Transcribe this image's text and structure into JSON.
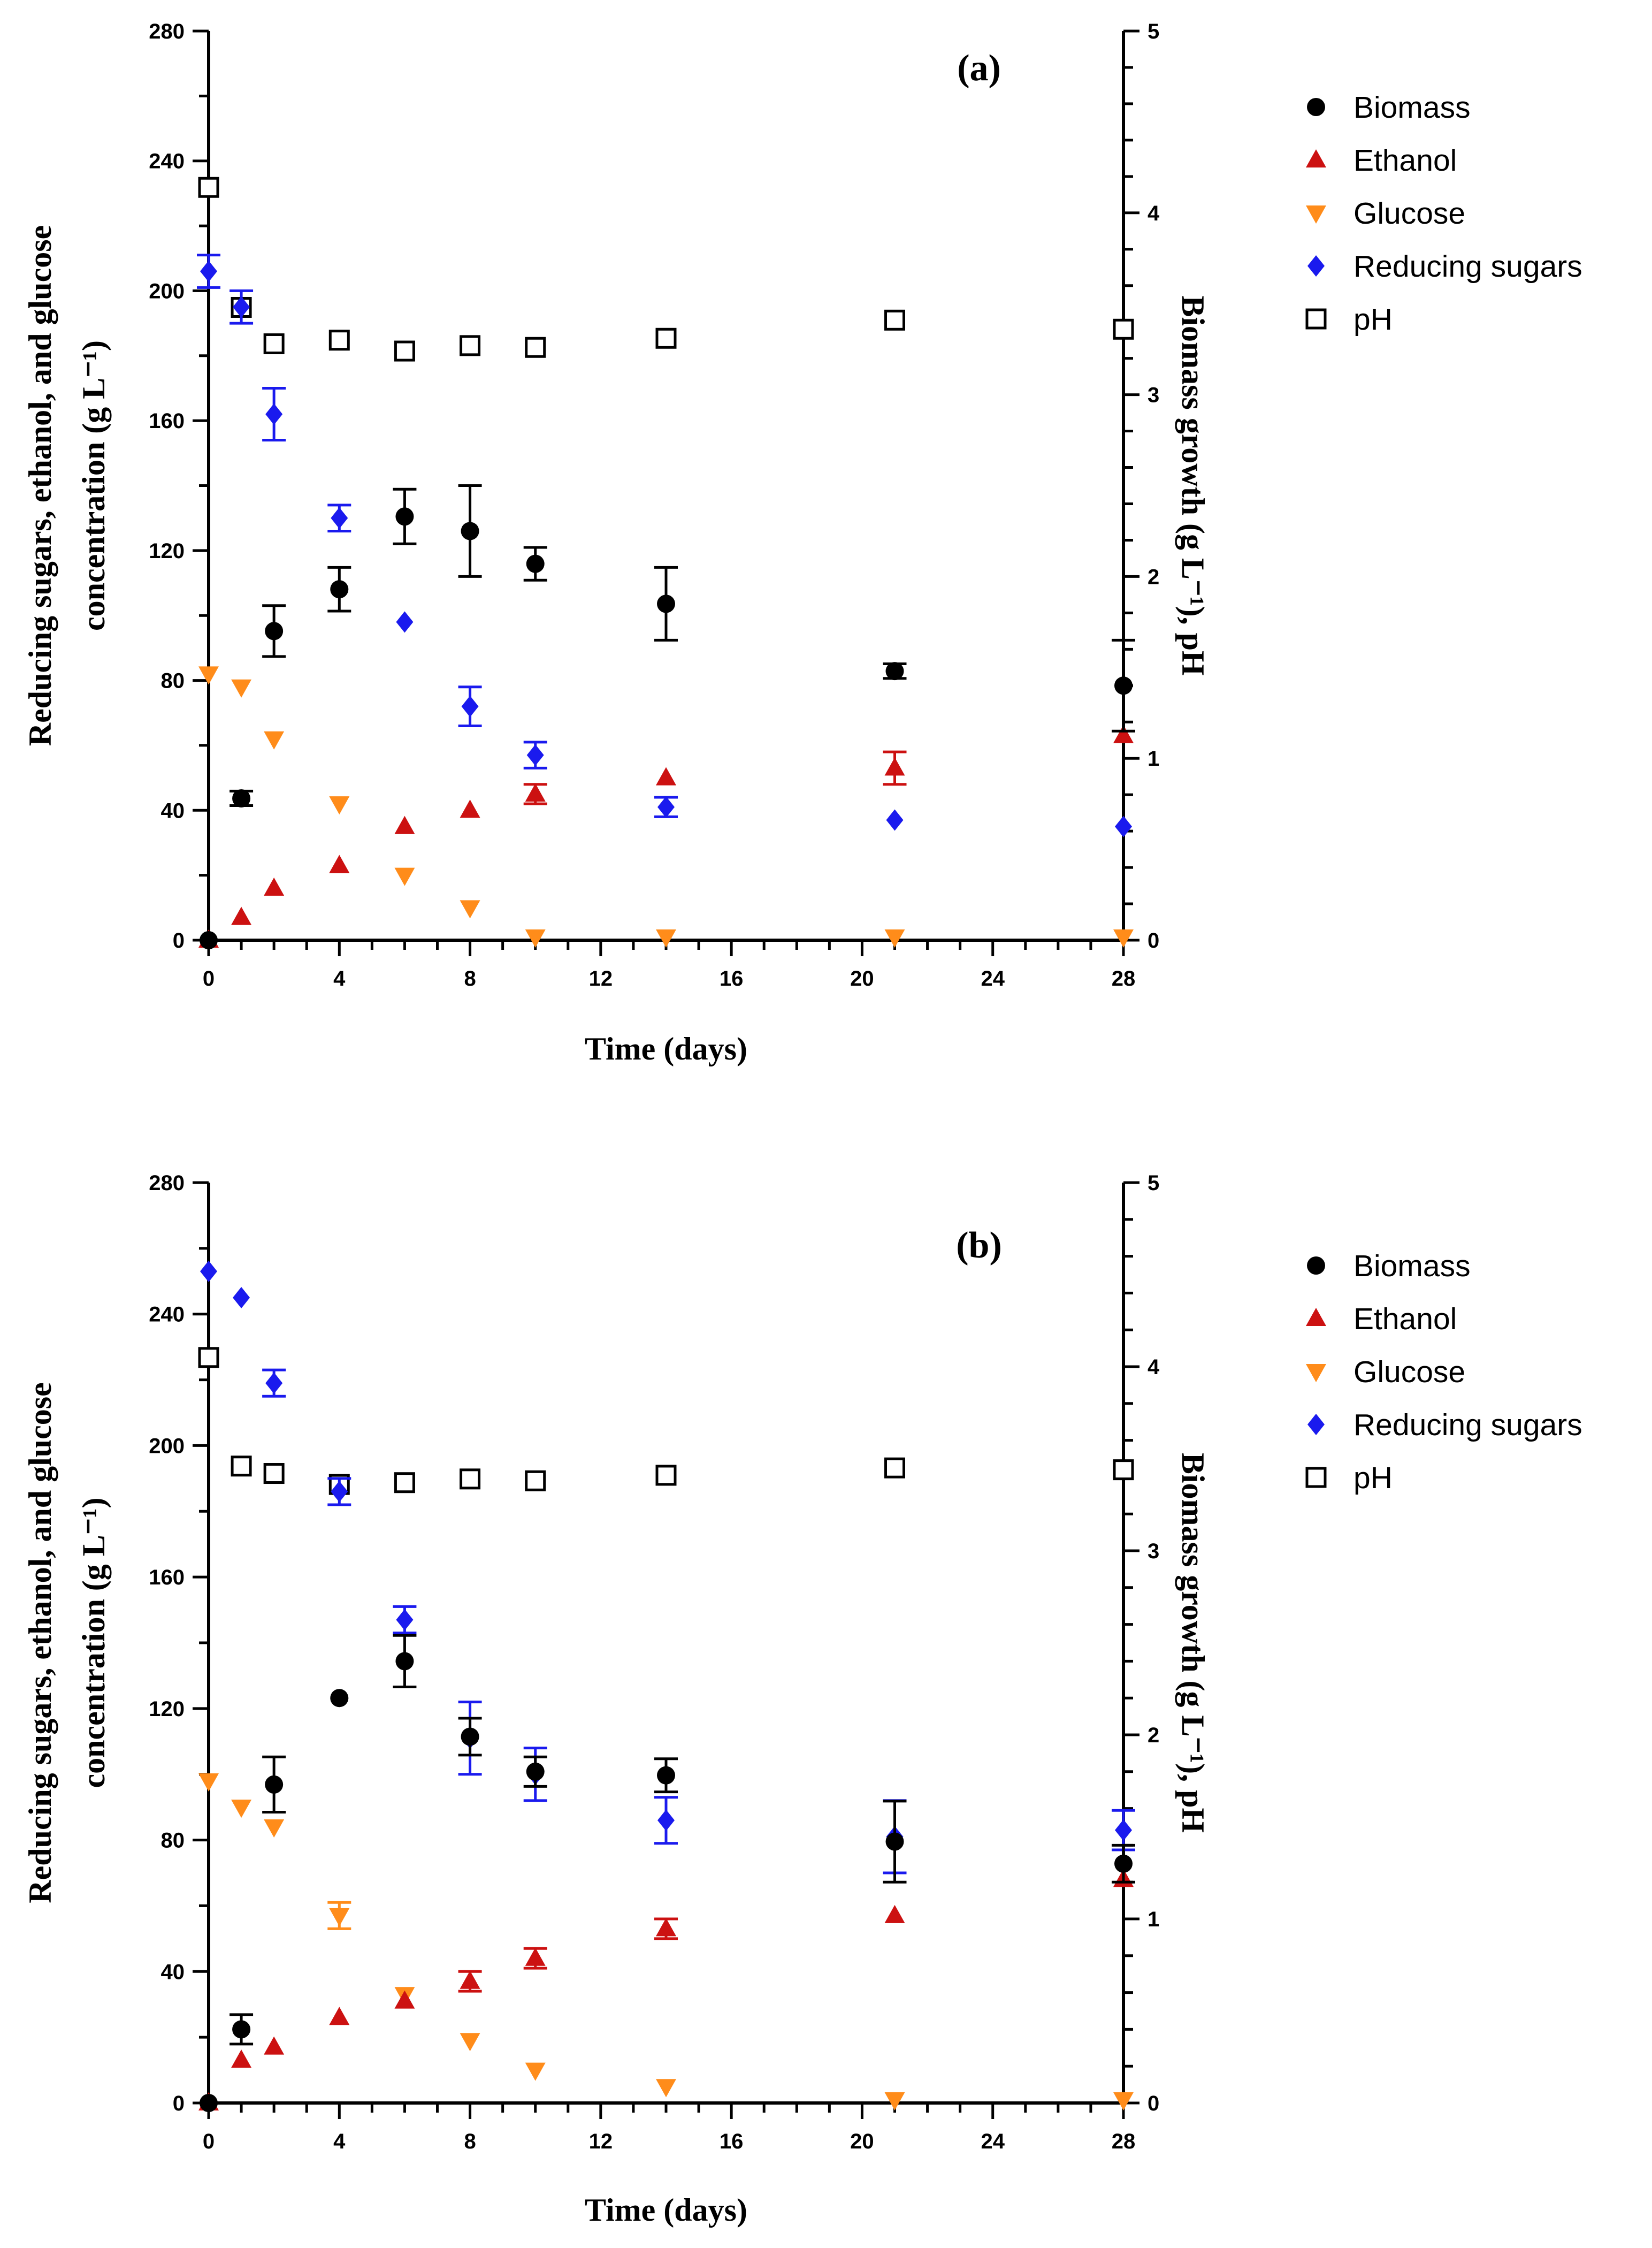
{
  "colors": {
    "biomass": "#000000",
    "ethanol": "#cc1111",
    "glucose": "#ff8c1a",
    "reducing": "#1a1aee",
    "ph": "#000000"
  },
  "chart_data": [
    {
      "type": "scatter",
      "panel_label": "(a)",
      "xlabel": "Time (days)",
      "ylabel_left_line1": "Reducing sugars, ethanol, and glucose",
      "ylabel_left_line2": "concentration (g L⁻¹)",
      "ylabel_right": "Biomass growth (g L⁻¹), pH",
      "xlim": [
        0,
        28
      ],
      "x_ticks": [
        "0",
        "4",
        "8",
        "12",
        "16",
        "20",
        "24",
        "28"
      ],
      "ylim_left": [
        0,
        280
      ],
      "y_ticks_left": [
        "0",
        "40",
        "80",
        "120",
        "160",
        "200",
        "240",
        "280"
      ],
      "ylim_right": [
        0,
        5
      ],
      "y_ticks_right": [
        "0",
        "1",
        "2",
        "3",
        "4",
        "5"
      ],
      "legend": [
        "Biomass",
        "Ethanol",
        "Glucose",
        "Reducing sugars",
        "pH"
      ],
      "series": [
        {
          "name": "Biomass",
          "axis": "right",
          "marker": "circle",
          "color_key": "biomass",
          "x": [
            0,
            1,
            2,
            4,
            6,
            8,
            10,
            14,
            21,
            28
          ],
          "y": [
            0,
            0.78,
            1.7,
            1.93,
            2.33,
            2.25,
            2.07,
            1.85,
            1.48,
            1.4
          ],
          "err": [
            0,
            0.04,
            0.14,
            0.12,
            0.15,
            0.25,
            0.09,
            0.2,
            0.04,
            0.25
          ]
        },
        {
          "name": "Ethanol",
          "axis": "left",
          "marker": "triangle-up",
          "color_key": "ethanol",
          "x": [
            0,
            1,
            2,
            4,
            6,
            8,
            10,
            14,
            21,
            28
          ],
          "y": [
            0,
            7,
            16,
            23,
            35,
            40,
            45,
            50,
            53,
            63
          ],
          "err": [
            0,
            0,
            0,
            0,
            0,
            0,
            3,
            0,
            5,
            0
          ]
        },
        {
          "name": "Glucose",
          "axis": "left",
          "marker": "triangle-down",
          "color_key": "glucose",
          "x": [
            0,
            1,
            2,
            4,
            6,
            8,
            10,
            14,
            21,
            28
          ],
          "y": [
            82,
            78,
            62,
            42,
            20,
            10,
            1,
            1,
            1,
            1
          ],
          "err": [
            0,
            0,
            0,
            0,
            0,
            0,
            0,
            0,
            0,
            0
          ]
        },
        {
          "name": "Reducing sugars",
          "axis": "left",
          "marker": "diamond",
          "color_key": "reducing",
          "x": [
            0,
            1,
            2,
            4,
            6,
            8,
            10,
            14,
            21,
            28
          ],
          "y": [
            206,
            195,
            162,
            130,
            98,
            72,
            57,
            41,
            37,
            35
          ],
          "err": [
            5,
            5,
            8,
            4,
            0,
            6,
            4,
            3,
            0,
            0
          ]
        },
        {
          "name": "pH",
          "axis": "right",
          "marker": "square-open",
          "color_key": "ph",
          "x": [
            0,
            1,
            2,
            4,
            6,
            8,
            10,
            14,
            21,
            28
          ],
          "y": [
            4.14,
            3.48,
            3.28,
            3.3,
            3.24,
            3.27,
            3.26,
            3.31,
            3.41,
            3.36
          ],
          "err": [
            0,
            0,
            0,
            0,
            0,
            0,
            0,
            0,
            0,
            0
          ]
        }
      ]
    },
    {
      "type": "scatter",
      "panel_label": "(b)",
      "xlabel": "Time (days)",
      "ylabel_left_line1": "Reducing sugars, ethanol, and glucose",
      "ylabel_left_line2": "concentration (g L⁻¹)",
      "ylabel_right": "Biomass growth (g L⁻¹), pH",
      "xlim": [
        0,
        28
      ],
      "x_ticks": [
        "0",
        "4",
        "8",
        "12",
        "16",
        "20",
        "24",
        "28"
      ],
      "ylim_left": [
        0,
        280
      ],
      "y_ticks_left": [
        "0",
        "40",
        "80",
        "120",
        "160",
        "200",
        "240",
        "280"
      ],
      "ylim_right": [
        0,
        5
      ],
      "y_ticks_right": [
        "0",
        "1",
        "2",
        "3",
        "4",
        "5"
      ],
      "legend": [
        "Biomass",
        "Ethanol",
        "Glucose",
        "Reducing sugars",
        "pH"
      ],
      "series": [
        {
          "name": "Biomass",
          "axis": "right",
          "marker": "circle",
          "color_key": "biomass",
          "x": [
            0,
            1,
            2,
            4,
            6,
            8,
            10,
            14,
            21,
            28
          ],
          "y": [
            0,
            0.4,
            1.73,
            2.2,
            2.4,
            1.99,
            1.8,
            1.78,
            1.42,
            1.3
          ],
          "err": [
            0,
            0.08,
            0.15,
            0,
            0.14,
            0.1,
            0.08,
            0.09,
            0.22,
            0.1
          ]
        },
        {
          "name": "Ethanol",
          "axis": "left",
          "marker": "triangle-up",
          "color_key": "ethanol",
          "x": [
            0,
            1,
            2,
            4,
            6,
            8,
            10,
            14,
            21,
            28
          ],
          "y": [
            0,
            13,
            17,
            26,
            31,
            37,
            44,
            53,
            57,
            68
          ],
          "err": [
            0,
            0,
            0,
            0,
            0,
            3,
            3,
            3,
            0,
            0
          ]
        },
        {
          "name": "Glucose",
          "axis": "left",
          "marker": "triangle-down",
          "color_key": "glucose",
          "x": [
            0,
            1,
            2,
            4,
            6,
            8,
            10,
            14,
            21,
            28
          ],
          "y": [
            98,
            90,
            84,
            57,
            33,
            19,
            10,
            5,
            1,
            1
          ],
          "err": [
            0,
            0,
            0,
            4,
            0,
            0,
            0,
            0,
            0,
            0
          ]
        },
        {
          "name": "Reducing sugars",
          "axis": "left",
          "marker": "diamond",
          "color_key": "reducing",
          "x": [
            0,
            1,
            2,
            4,
            6,
            8,
            10,
            14,
            21,
            28
          ],
          "y": [
            253,
            245,
            219,
            186,
            147,
            111,
            100,
            86,
            81,
            83
          ],
          "err": [
            0,
            0,
            4,
            4,
            4,
            11,
            8,
            7,
            11,
            6
          ]
        },
        {
          "name": "pH",
          "axis": "right",
          "marker": "square-open",
          "color_key": "ph",
          "x": [
            0,
            1,
            2,
            4,
            6,
            8,
            10,
            14,
            21,
            28
          ],
          "y": [
            4.05,
            3.46,
            3.42,
            3.36,
            3.37,
            3.39,
            3.38,
            3.41,
            3.45,
            3.44
          ],
          "err": [
            0,
            0,
            0,
            0,
            0,
            0,
            0,
            0,
            0,
            0
          ]
        }
      ]
    }
  ]
}
